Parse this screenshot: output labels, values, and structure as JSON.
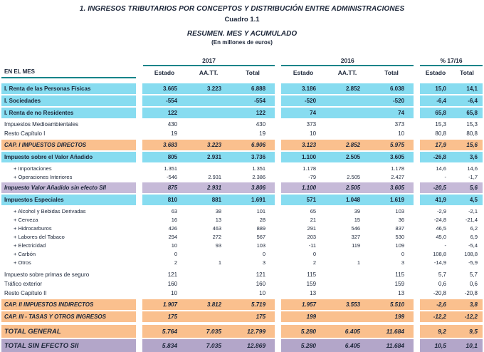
{
  "title": "1. INGRESOS TRIBUTARIOS POR CONCEPTOS Y DISTRIBUCIÓN ENTRE ADMINISTRACIONES",
  "subtitle": "Cuadro 1.1",
  "section_title": "RESUMEN. MES Y ACUMULADO",
  "units": "(En millones de euros)",
  "colors": {
    "cyan": "#87dcf0",
    "orange": "#fac08e",
    "lavender": "#c6bad8",
    "lavender_dark": "#b3a6c9",
    "teal": "#0e8489",
    "ink": "#1b2538"
  },
  "header": {
    "row_label": "EN EL MES",
    "groups": [
      {
        "label": "2017",
        "columns": [
          "Estado",
          "AA.TT.",
          "Total"
        ]
      },
      {
        "label": "2016",
        "columns": [
          "Estado",
          "AA.TT.",
          "Total"
        ]
      },
      {
        "label": "% 17/16",
        "columns": [
          "Estado",
          "Total"
        ]
      }
    ]
  },
  "rows": [
    {
      "label": "I. Renta de las Personas Físicas",
      "style": "cyan",
      "values": [
        "3.665",
        "3.223",
        "6.888",
        "3.186",
        "2.852",
        "6.038",
        "15,0",
        "14,1"
      ]
    },
    {
      "label": "I. Sociedades",
      "style": "cyan",
      "values": [
        "-554",
        "",
        "-554",
        "-520",
        "",
        "-520",
        "-6,4",
        "-6,4"
      ]
    },
    {
      "label": "I. Renta de no Residentes",
      "style": "cyan",
      "values": [
        "122",
        "",
        "122",
        "74",
        "",
        "74",
        "65,8",
        "65,8"
      ]
    },
    {
      "label": "Impuestos Medioambientales",
      "style": "plain",
      "values": [
        "430",
        "",
        "430",
        "373",
        "",
        "373",
        "15,3",
        "15,3"
      ]
    },
    {
      "label": "Resto Capítulo I",
      "style": "plain",
      "values": [
        "19",
        "",
        "19",
        "10",
        "",
        "10",
        "80,8",
        "80,8"
      ]
    },
    {
      "label": "CAP. I IMPUESTOS DIRECTOS",
      "style": "orange",
      "values": [
        "3.683",
        "3.223",
        "6.906",
        "3.123",
        "2.852",
        "5.975",
        "17,9",
        "15,6"
      ]
    },
    {
      "label": "Impuesto sobre el Valor Añadido",
      "style": "cyan",
      "values": [
        "805",
        "2.931",
        "3.736",
        "1.100",
        "2.505",
        "3.605",
        "-26,8",
        "3,6"
      ]
    },
    {
      "label": "+ Importaciones",
      "style": "sub",
      "values": [
        "1.351",
        "",
        "1.351",
        "1.178",
        "",
        "1.178",
        "14,6",
        "14,6"
      ]
    },
    {
      "label": "+ Operaciones Interiores",
      "style": "sub",
      "values": [
        "-546",
        "2.931",
        "2.386",
        "-79",
        "2.505",
        "2.427",
        "-",
        "-1,7"
      ]
    },
    {
      "label": "Impuesto Valor Añadido sin efecto SII",
      "style": "lavender",
      "values": [
        "875",
        "2.931",
        "3.806",
        "1.100",
        "2.505",
        "3.605",
        "-20,5",
        "5,6"
      ]
    },
    {
      "label": "Impuestos Especiales",
      "style": "cyan",
      "values": [
        "810",
        "881",
        "1.691",
        "571",
        "1.048",
        "1.619",
        "41,9",
        "4,5"
      ]
    },
    {
      "label": "+ Alcohol y Bebidas Derivadas",
      "style": "sub",
      "values": [
        "63",
        "38",
        "101",
        "65",
        "39",
        "103",
        "-2,9",
        "-2,1"
      ]
    },
    {
      "label": "+ Cerveza",
      "style": "sub",
      "values": [
        "16",
        "13",
        "28",
        "21",
        "15",
        "36",
        "-24,8",
        "-21,4"
      ]
    },
    {
      "label": "+ Hidrocarburos",
      "style": "sub",
      "values": [
        "426",
        "463",
        "889",
        "291",
        "546",
        "837",
        "46,5",
        "6,2"
      ]
    },
    {
      "label": "+ Labores del Tabaco",
      "style": "sub",
      "values": [
        "294",
        "272",
        "567",
        "203",
        "327",
        "530",
        "45,0",
        "6,9"
      ]
    },
    {
      "label": "+ Electricidad",
      "style": "sub",
      "values": [
        "10",
        "93",
        "103",
        "-11",
        "119",
        "109",
        "-",
        "-5,4"
      ]
    },
    {
      "label": "+ Carbón",
      "style": "sub",
      "values": [
        "0",
        "",
        "0",
        "0",
        "",
        "0",
        "108,8",
        "108,8"
      ]
    },
    {
      "label": "+ Otros",
      "style": "sub",
      "values": [
        "2",
        "1",
        "3",
        "2",
        "1",
        "3",
        "-14,9",
        "-5,9"
      ]
    },
    {
      "label": "Impuesto sobre primas de seguro",
      "style": "plain",
      "spacer_before": true,
      "values": [
        "121",
        "",
        "121",
        "115",
        "",
        "115",
        "5,7",
        "5,7"
      ]
    },
    {
      "label": "Tráfico exterior",
      "style": "plain",
      "values": [
        "160",
        "",
        "160",
        "159",
        "",
        "159",
        "0,6",
        "0,6"
      ]
    },
    {
      "label": "Resto Capítulo II",
      "style": "plain",
      "values": [
        "10",
        "",
        "10",
        "13",
        "",
        "13",
        "-20,8",
        "-20,8"
      ]
    },
    {
      "label": "CAP. II IMPUESTOS INDIRECTOS",
      "style": "orange",
      "values": [
        "1.907",
        "3.812",
        "5.719",
        "1.957",
        "3.553",
        "5.510",
        "-2,6",
        "3,8"
      ]
    },
    {
      "label": "CAP. III - TASAS Y OTROS INGRESOS",
      "style": "orange",
      "values": [
        "175",
        "",
        "175",
        "199",
        "",
        "199",
        "-12,2",
        "-12,2"
      ]
    },
    {
      "label": "TOTAL GENERAL",
      "style": "orange-total",
      "values": [
        "5.764",
        "7.035",
        "12.799",
        "5.280",
        "6.405",
        "11.684",
        "9,2",
        "9,5"
      ]
    },
    {
      "label": "TOTAL SIN EFECTO SII",
      "style": "lavender-total",
      "values": [
        "5.834",
        "7.035",
        "12.869",
        "5.280",
        "6.405",
        "11.684",
        "10,5",
        "10,1"
      ]
    }
  ]
}
